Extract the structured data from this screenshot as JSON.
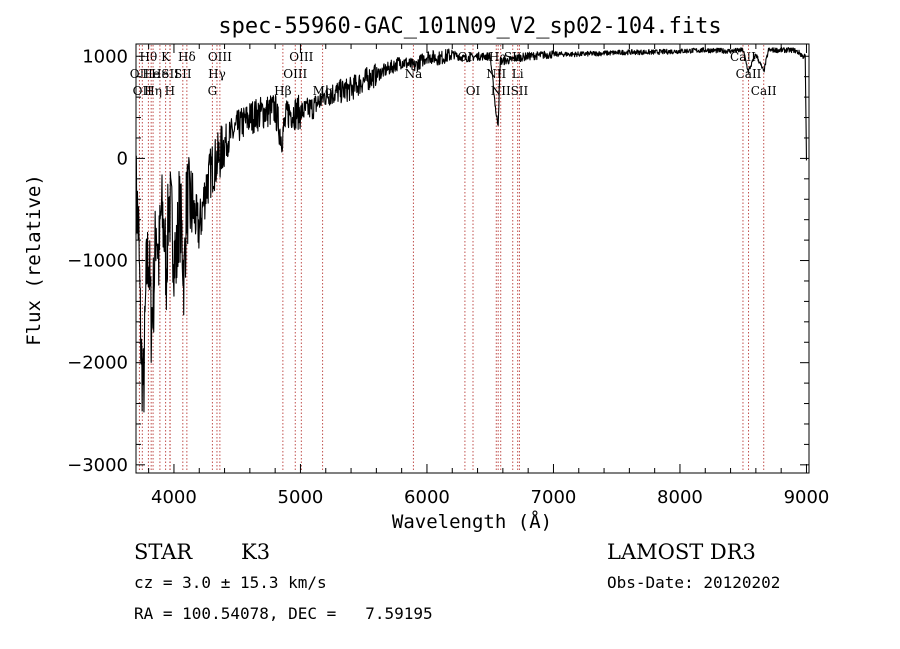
{
  "chart_data": {
    "type": "line",
    "title": "spec-55960-GAC_101N09_V2_sp02-104.fits",
    "xlabel": "Wavelength (Å)",
    "ylabel": "Flux (relative)",
    "xlim": [
      3700,
      9020
    ],
    "ylim": [
      -3080,
      1120
    ],
    "x_ticks": [
      4000,
      5000,
      6000,
      7000,
      8000,
      9000
    ],
    "y_ticks": [
      -3000,
      -2000,
      -1000,
      0,
      1000
    ],
    "y_tick_labels": [
      "−3000",
      "−2000",
      "−1000",
      "0",
      "1000"
    ],
    "series": [
      {
        "name": "flux",
        "x": [
          3700,
          3720,
          3740,
          3760,
          3780,
          3800,
          3820,
          3840,
          3860,
          3880,
          3900,
          3920,
          3940,
          3960,
          3980,
          4000,
          4020,
          4040,
          4060,
          4080,
          4100,
          4150,
          4200,
          4250,
          4300,
          4350,
          4400,
          4500,
          4600,
          4700,
          4800,
          4850,
          4900,
          5000,
          5100,
          5200,
          5300,
          5400,
          5500,
          5600,
          5700,
          5800,
          5900,
          6000,
          6100,
          6200,
          6300,
          6400,
          6500,
          6550,
          6563,
          6580,
          6650,
          6700,
          6800,
          7000,
          7200,
          7400,
          7600,
          7800,
          8000,
          8200,
          8400,
          8500,
          8540,
          8600,
          8662,
          8700,
          8800,
          8900,
          8950,
          8970,
          8990,
          9000
        ],
        "y": [
          -300,
          -700,
          -1900,
          -2300,
          -1200,
          -900,
          -1600,
          -1300,
          -600,
          -1000,
          -500,
          -700,
          -1100,
          -400,
          -600,
          -900,
          -1000,
          -500,
          -700,
          -1200,
          -400,
          -500,
          -700,
          -300,
          -100,
          0,
          150,
          300,
          400,
          450,
          480,
          200,
          450,
          450,
          500,
          620,
          650,
          680,
          760,
          820,
          880,
          950,
          900,
          1000,
          980,
          1020,
          980,
          1000,
          1000,
          400,
          350,
          950,
          960,
          980,
          1000,
          1020,
          1020,
          1030,
          1040,
          1040,
          1050,
          1060,
          1050,
          1060,
          850,
          1020,
          850,
          1060,
          1060,
          1060,
          1030,
          1000,
          1000,
          -20
        ]
      }
    ],
    "lines": [
      {
        "wl": 3727,
        "label": "OII",
        "row": 1
      },
      {
        "wl": 3750,
        "label": "OII",
        "row": 2
      },
      {
        "wl": 3798,
        "label": "Hθ",
        "row": 0
      },
      {
        "wl": 3820,
        "label": "He",
        "row": 1
      },
      {
        "wl": 3835,
        "label": "Hη",
        "row": 2
      },
      {
        "wl": 3889,
        "label": "He",
        "row": 1
      },
      {
        "wl": 3934,
        "label": "K",
        "row": 0
      },
      {
        "wl": 3968,
        "label": "H",
        "row": 2
      },
      {
        "wl": 3970,
        "label": "SII",
        "row": 1
      },
      {
        "wl": 4070,
        "label": "SII",
        "row": 1
      },
      {
        "wl": 4102,
        "label": "Hδ",
        "row": 0
      },
      {
        "wl": 4304,
        "label": "G",
        "row": 2
      },
      {
        "wl": 4340,
        "label": "Hγ",
        "row": 1
      },
      {
        "wl": 4363,
        "label": "OIII",
        "row": 0
      },
      {
        "wl": 4861,
        "label": "Hβ",
        "row": 2
      },
      {
        "wl": 4959,
        "label": "OIII",
        "row": 1
      },
      {
        "wl": 5007,
        "label": "OIII",
        "row": 0
      },
      {
        "wl": 5175,
        "label": "Mg",
        "row": 2
      },
      {
        "wl": 5893,
        "label": "Na",
        "row": 1
      },
      {
        "wl": 6300,
        "label": "OI",
        "row": 0
      },
      {
        "wl": 6364,
        "label": "OI",
        "row": 2
      },
      {
        "wl": 6548,
        "label": "NII",
        "row": 1
      },
      {
        "wl": 6563,
        "label": "Hα",
        "row": 0
      },
      {
        "wl": 6583,
        "label": "NII",
        "row": 2
      },
      {
        "wl": 6678,
        "label": "SII",
        "row": 0
      },
      {
        "wl": 6717,
        "label": "Li",
        "row": 1
      },
      {
        "wl": 6731,
        "label": "SII",
        "row": 2
      },
      {
        "wl": 8498,
        "label": "CaII",
        "row": 0
      },
      {
        "wl": 8542,
        "label": "CaII",
        "row": 1
      },
      {
        "wl": 8662,
        "label": "CaII",
        "row": 2
      }
    ]
  },
  "info": {
    "class": "STAR",
    "subclass": "K3",
    "survey": "LAMOST DR3",
    "cz": "cz = 3.0 ± 15.3 km/s",
    "obs_date": "Obs-Date: 20120202",
    "coords": "RA = 100.54078, DEC =   7.59195"
  },
  "colors": {
    "line_marker": "#c0504d",
    "spectrum": "#000000"
  }
}
